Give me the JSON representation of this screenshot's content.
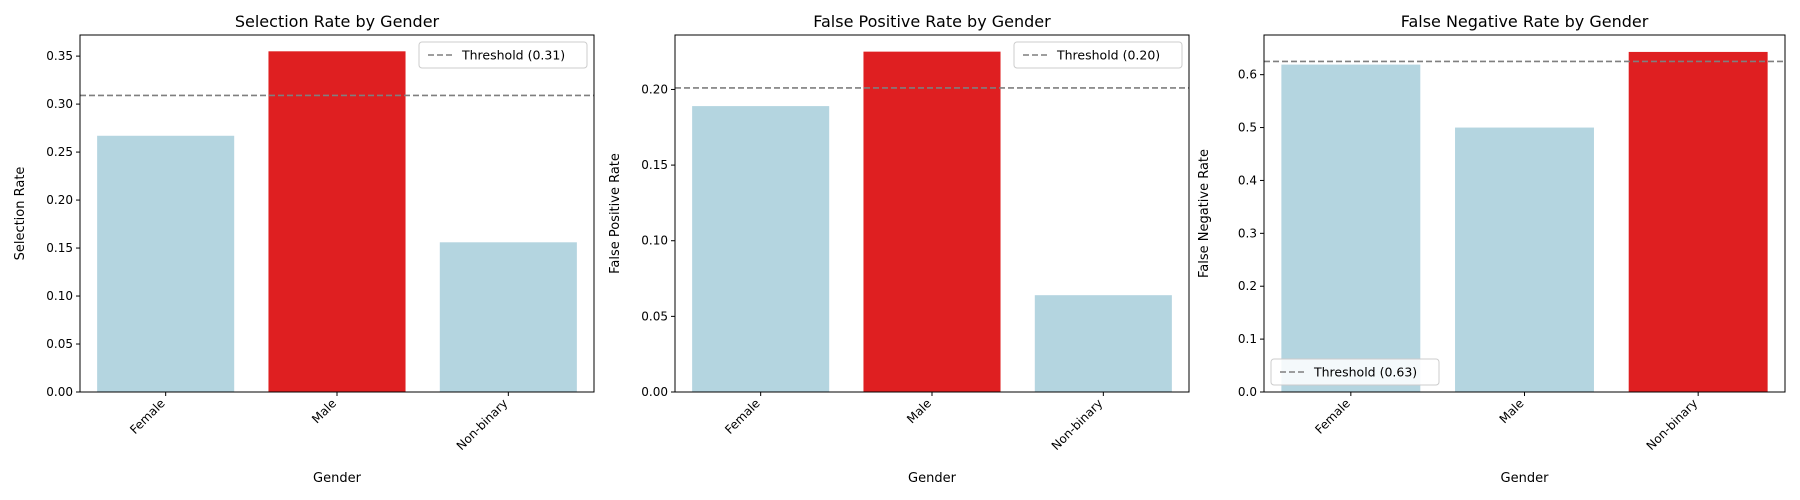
{
  "chart_data": [
    {
      "type": "bar",
      "title": "Selection Rate by Gender",
      "xlabel": "Gender",
      "ylabel": "Selection Rate",
      "categories": [
        "Female",
        "Male",
        "Non-binary"
      ],
      "values": [
        0.267,
        0.355,
        0.156
      ],
      "bar_colors": [
        "#b4d5e0",
        "#df1f21",
        "#b4d5e0"
      ],
      "ylim": [
        0,
        0.372
      ],
      "yticks": [
        0.0,
        0.05,
        0.1,
        0.15,
        0.2,
        0.25,
        0.3,
        0.35
      ],
      "ytick_labels": [
        "0.00",
        "0.05",
        "0.10",
        "0.15",
        "0.20",
        "0.25",
        "0.30",
        "0.35"
      ],
      "threshold": {
        "value": 0.309,
        "label": "Threshold (0.31)",
        "color": "#7f7f7f"
      },
      "legend_position": "top-right",
      "grid": false
    },
    {
      "type": "bar",
      "title": "False Positive Rate by Gender",
      "xlabel": "Gender",
      "ylabel": "False Positive Rate",
      "categories": [
        "Female",
        "Male",
        "Non-binary"
      ],
      "values": [
        0.189,
        0.225,
        0.064
      ],
      "bar_colors": [
        "#b4d5e0",
        "#df1f21",
        "#b4d5e0"
      ],
      "ylim": [
        0,
        0.236
      ],
      "yticks": [
        0.0,
        0.05,
        0.1,
        0.15,
        0.2
      ],
      "ytick_labels": [
        "0.00",
        "0.05",
        "0.10",
        "0.15",
        "0.20"
      ],
      "threshold": {
        "value": 0.201,
        "label": "Threshold (0.20)",
        "color": "#7f7f7f"
      },
      "legend_position": "top-right",
      "grid": false
    },
    {
      "type": "bar",
      "title": "False Negative Rate by Gender",
      "xlabel": "Gender",
      "ylabel": "False Negative Rate",
      "categories": [
        "Female",
        "Male",
        "Non-binary"
      ],
      "values": [
        0.619,
        0.5,
        0.643
      ],
      "bar_colors": [
        "#b4d5e0",
        "#b4d5e0",
        "#df1f21"
      ],
      "ylim": [
        0,
        0.675
      ],
      "yticks": [
        0.0,
        0.1,
        0.2,
        0.3,
        0.4,
        0.5,
        0.6
      ],
      "ytick_labels": [
        "0.0",
        "0.1",
        "0.2",
        "0.3",
        "0.4",
        "0.5",
        "0.6"
      ],
      "threshold": {
        "value": 0.625,
        "label": "Threshold (0.63)",
        "color": "#7f7f7f"
      },
      "legend_position": "bottom-left",
      "grid": false
    }
  ]
}
